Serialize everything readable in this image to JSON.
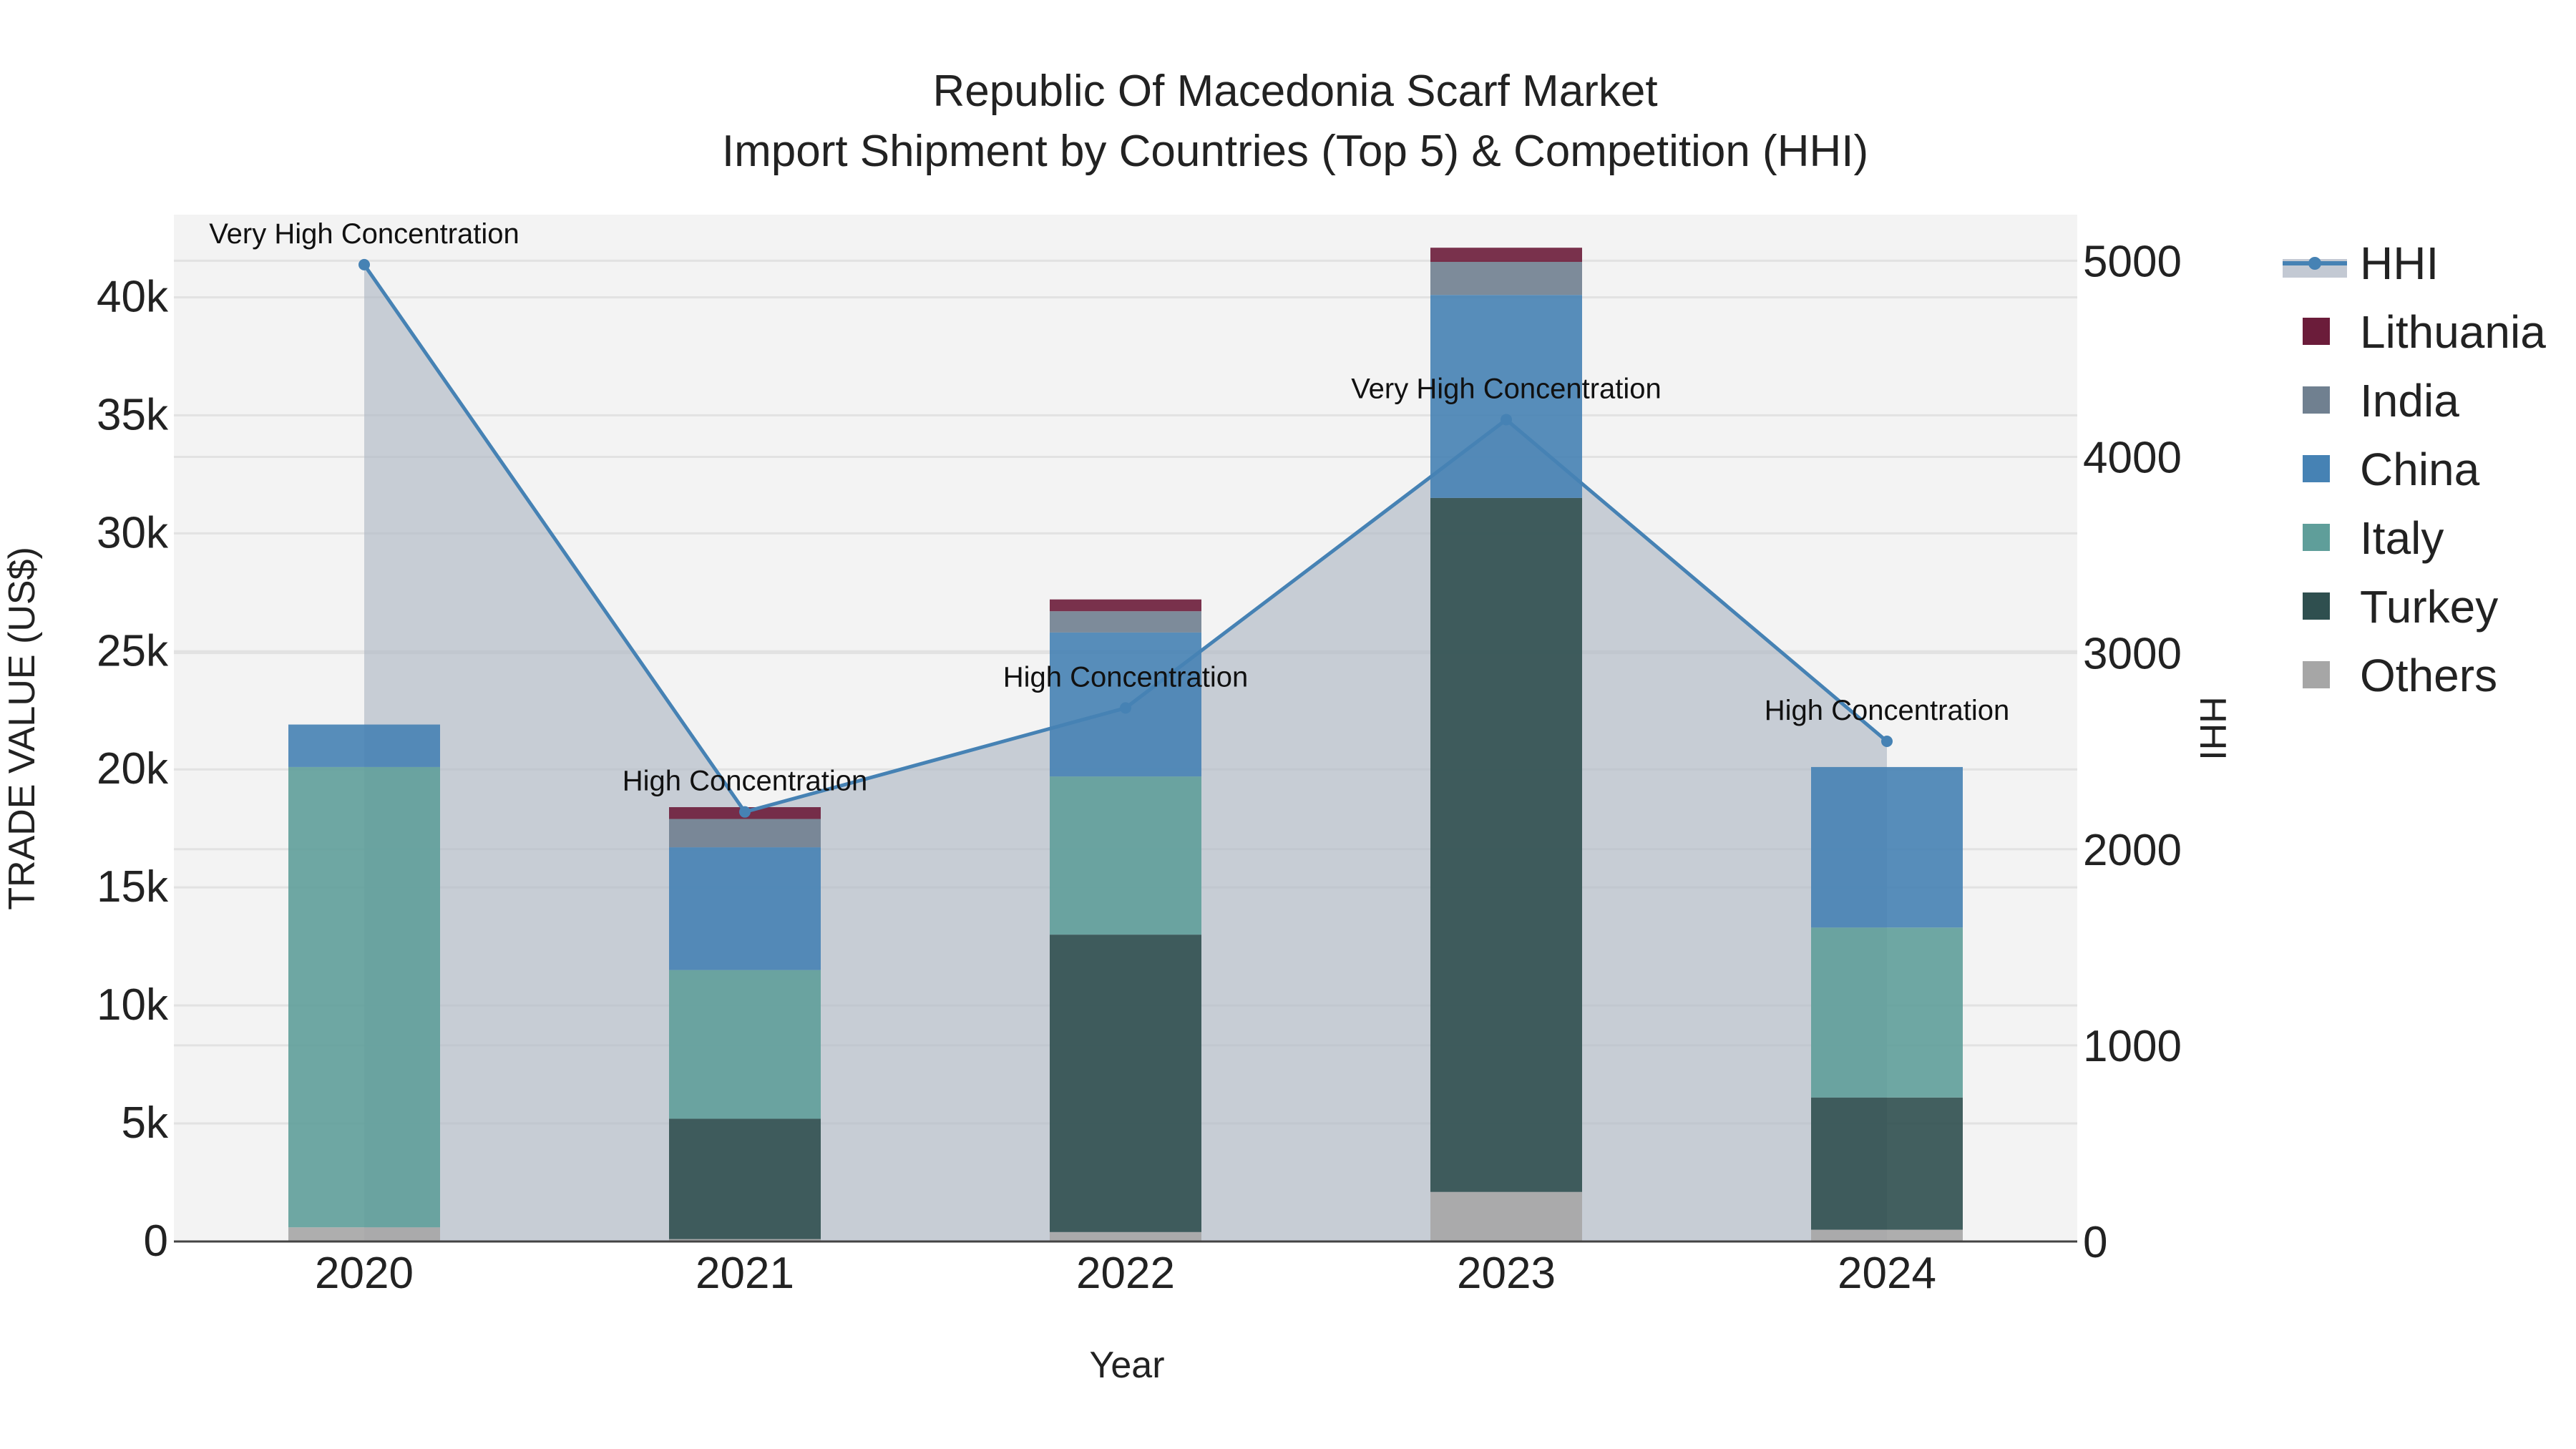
{
  "chart_data": {
    "type": "bar",
    "title_line1": "Republic Of Macedonia Scarf Market",
    "title_line2": "Import Shipment by Countries (Top 5) & Competition (HHI)",
    "xlabel": "Year",
    "ylabel": "TRADE VALUE (US$)",
    "y2label": "HHI",
    "categories": [
      "2020",
      "2021",
      "2022",
      "2023",
      "2024"
    ],
    "ylim": [
      0,
      43500
    ],
    "y_ticks": [
      0,
      5000,
      10000,
      15000,
      20000,
      25000,
      30000,
      35000,
      40000
    ],
    "y_tick_labels": [
      "0",
      "5k",
      "10k",
      "15k",
      "20k",
      "25k",
      "30k",
      "35k",
      "40k"
    ],
    "y2lim": [
      0,
      5235
    ],
    "y2_ticks": [
      0,
      1000,
      2000,
      3000,
      4000,
      5000
    ],
    "y2_tick_labels": [
      "0",
      "1000",
      "2000",
      "3000",
      "4000",
      "5000"
    ],
    "series": [
      {
        "name": "Others",
        "color": "#a6a6a6",
        "values": [
          600,
          100,
          400,
          2100,
          500
        ]
      },
      {
        "name": "Turkey",
        "color": "#2f4f4f",
        "values": [
          0,
          5100,
          12600,
          29400,
          5600
        ]
      },
      {
        "name": "Italy",
        "color": "#5f9e9a",
        "values": [
          19500,
          6300,
          6700,
          0,
          7200
        ]
      },
      {
        "name": "China",
        "color": "#4682b4",
        "values": [
          1800,
          5200,
          6100,
          8600,
          6800
        ]
      },
      {
        "name": "India",
        "color": "#708090",
        "values": [
          0,
          1200,
          900,
          1400,
          0
        ]
      },
      {
        "name": "Lithuania",
        "color": "#6b1c3a",
        "values": [
          0,
          500,
          500,
          600,
          0
        ]
      }
    ],
    "hhi": {
      "name": "HHI",
      "color": "#4682b4",
      "values": [
        4980,
        2190,
        2720,
        4190,
        2550
      ],
      "labels": [
        "Very High Concentration",
        "High Concentration",
        "High Concentration",
        "Very High Concentration",
        "High Concentration"
      ]
    },
    "legend_order": [
      "HHI",
      "Lithuania",
      "India",
      "China",
      "Italy",
      "Turkey",
      "Others"
    ]
  }
}
